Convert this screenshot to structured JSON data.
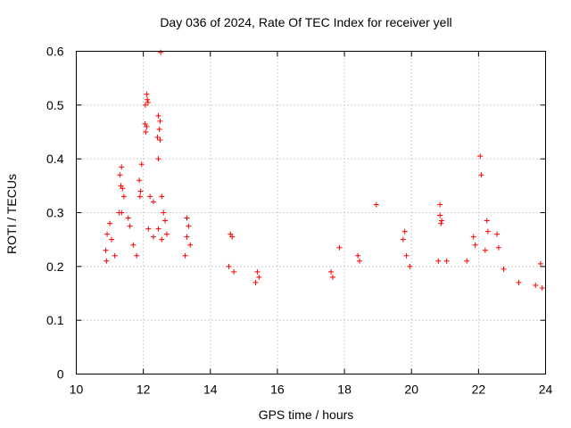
{
  "chart_data": {
    "type": "scatter",
    "title": "Day 036 of 2024, Rate Of TEC Index for receiver yell",
    "xlabel": "GPS time / hours",
    "ylabel": "ROTI / TECUs",
    "xlim": [
      10,
      24
    ],
    "ylim": [
      0,
      0.6
    ],
    "xticks": [
      10,
      12,
      14,
      16,
      18,
      20,
      22,
      24
    ],
    "yticks": [
      0,
      0.1,
      0.2,
      0.3,
      0.4,
      0.5,
      0.6
    ],
    "xtick_labels": [
      "10",
      "12",
      "14",
      "16",
      "18",
      "20",
      "22",
      "24"
    ],
    "ytick_labels": [
      "0",
      "0.1",
      "0.2",
      "0.3",
      "0.4",
      "0.5",
      "0.6"
    ],
    "grid": true,
    "marker": "+",
    "color": "#ff0000",
    "series": [
      {
        "name": "ROTI",
        "points": [
          [
            12.52,
            0.598
          ],
          [
            12.1,
            0.52
          ],
          [
            12.12,
            0.51
          ],
          [
            12.06,
            0.5
          ],
          [
            12.14,
            0.505
          ],
          [
            12.05,
            0.465
          ],
          [
            12.1,
            0.46
          ],
          [
            12.45,
            0.48
          ],
          [
            12.5,
            0.47
          ],
          [
            12.48,
            0.455
          ],
          [
            12.42,
            0.44
          ],
          [
            12.5,
            0.435
          ],
          [
            12.45,
            0.4
          ],
          [
            12.07,
            0.45
          ],
          [
            11.95,
            0.39
          ],
          [
            11.92,
            0.34
          ],
          [
            11.88,
            0.36
          ],
          [
            11.9,
            0.33
          ],
          [
            11.35,
            0.385
          ],
          [
            11.3,
            0.37
          ],
          [
            11.33,
            0.35
          ],
          [
            11.38,
            0.345
          ],
          [
            11.42,
            0.33
          ],
          [
            11.28,
            0.3
          ],
          [
            11.35,
            0.3
          ],
          [
            12.2,
            0.33
          ],
          [
            12.3,
            0.32
          ],
          [
            12.55,
            0.33
          ],
          [
            12.6,
            0.3
          ],
          [
            12.65,
            0.285
          ],
          [
            12.45,
            0.27
          ],
          [
            12.55,
            0.25
          ],
          [
            12.7,
            0.26
          ],
          [
            12.3,
            0.255
          ],
          [
            12.15,
            0.27
          ],
          [
            11.55,
            0.29
          ],
          [
            11.6,
            0.275
          ],
          [
            11.0,
            0.28
          ],
          [
            10.92,
            0.26
          ],
          [
            10.88,
            0.23
          ],
          [
            10.9,
            0.21
          ],
          [
            11.05,
            0.25
          ],
          [
            11.15,
            0.22
          ],
          [
            11.7,
            0.24
          ],
          [
            11.8,
            0.22
          ],
          [
            13.3,
            0.29
          ],
          [
            13.35,
            0.275
          ],
          [
            13.3,
            0.255
          ],
          [
            13.4,
            0.24
          ],
          [
            13.25,
            0.22
          ],
          [
            14.6,
            0.26
          ],
          [
            14.65,
            0.255
          ],
          [
            14.55,
            0.2
          ],
          [
            14.7,
            0.19
          ],
          [
            15.4,
            0.19
          ],
          [
            15.45,
            0.18
          ],
          [
            15.35,
            0.17
          ],
          [
            17.85,
            0.235
          ],
          [
            17.6,
            0.19
          ],
          [
            17.65,
            0.18
          ],
          [
            18.4,
            0.22
          ],
          [
            18.45,
            0.21
          ],
          [
            18.95,
            0.315
          ],
          [
            19.8,
            0.265
          ],
          [
            19.75,
            0.25
          ],
          [
            19.85,
            0.22
          ],
          [
            19.95,
            0.2
          ],
          [
            20.85,
            0.315
          ],
          [
            20.85,
            0.295
          ],
          [
            20.9,
            0.285
          ],
          [
            20.88,
            0.28
          ],
          [
            20.8,
            0.21
          ],
          [
            21.05,
            0.21
          ],
          [
            21.65,
            0.21
          ],
          [
            21.85,
            0.255
          ],
          [
            21.9,
            0.24
          ],
          [
            22.05,
            0.405
          ],
          [
            22.08,
            0.37
          ],
          [
            22.25,
            0.285
          ],
          [
            22.28,
            0.265
          ],
          [
            22.2,
            0.23
          ],
          [
            22.55,
            0.26
          ],
          [
            22.6,
            0.235
          ],
          [
            22.75,
            0.195
          ],
          [
            23.85,
            0.205
          ],
          [
            23.2,
            0.17
          ],
          [
            23.7,
            0.165
          ],
          [
            23.9,
            0.16
          ]
        ]
      }
    ]
  }
}
